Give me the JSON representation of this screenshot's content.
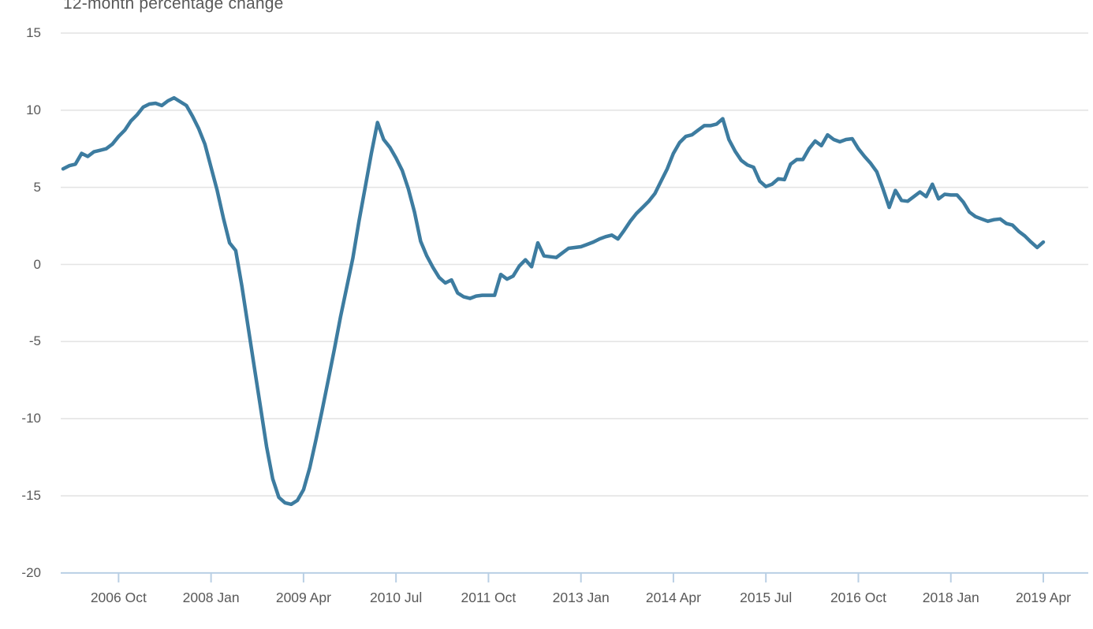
{
  "chart_data": {
    "type": "line",
    "title": "12-month percentage change",
    "xlabel": "",
    "ylabel": "",
    "x_start": "2006 Jan",
    "x_end": "2019 Apr",
    "frequency": "monthly",
    "x_tick_labels": [
      "2006 Oct",
      "2008 Jan",
      "2009 Apr",
      "2010 Jul",
      "2011 Oct",
      "2013 Jan",
      "2014 Apr",
      "2015 Jul",
      "2016 Oct",
      "2018 Jan",
      "2019 Apr"
    ],
    "x_tick_month_indices": [
      9,
      24,
      39,
      54,
      69,
      84,
      99,
      114,
      129,
      144,
      159
    ],
    "y_ticks": [
      15,
      10,
      5,
      0,
      -5,
      -10,
      -15,
      -20
    ],
    "ylim": [
      -20,
      15
    ],
    "grid": "horizontal",
    "legend": "none",
    "line_color": "#3d7ca0",
    "gridline_color": "#e4e4e4",
    "axis_color": "#b9cfe4",
    "text_color": "#595959",
    "series": [
      {
        "name": "12-month percentage change",
        "values": [
          6.2,
          6.4,
          6.5,
          7.2,
          7.0,
          7.3,
          7.4,
          7.5,
          7.8,
          8.3,
          8.7,
          9.3,
          9.7,
          10.2,
          10.4,
          10.45,
          10.3,
          10.6,
          10.8,
          10.55,
          10.3,
          9.6,
          8.8,
          7.8,
          6.3,
          4.8,
          3.0,
          1.4,
          0.9,
          -1.4,
          -4.0,
          -6.6,
          -9.2,
          -11.8,
          -13.9,
          -15.1,
          -15.45,
          -15.55,
          -15.3,
          -14.6,
          -13.2,
          -11.4,
          -9.5,
          -7.5,
          -5.5,
          -3.4,
          -1.5,
          0.4,
          2.8,
          5.0,
          7.2,
          9.2,
          8.1,
          7.6,
          6.9,
          6.1,
          4.9,
          3.4,
          1.5,
          0.55,
          -0.2,
          -0.85,
          -1.2,
          -1.0,
          -1.85,
          -2.1,
          -2.2,
          -2.05,
          -2.0,
          -2.0,
          -2.0,
          -0.65,
          -0.95,
          -0.75,
          -0.1,
          0.3,
          -0.15,
          1.4,
          0.55,
          0.5,
          0.45,
          0.75,
          1.05,
          1.1,
          1.15,
          1.3,
          1.45,
          1.65,
          1.8,
          1.9,
          1.65,
          2.2,
          2.8,
          3.3,
          3.7,
          4.1,
          4.6,
          5.4,
          6.2,
          7.2,
          7.9,
          8.3,
          8.4,
          8.7,
          9.0,
          9.0,
          9.1,
          9.45,
          8.1,
          7.35,
          6.75,
          6.45,
          6.3,
          5.4,
          5.05,
          5.2,
          5.55,
          5.5,
          6.5,
          6.8,
          6.8,
          7.5,
          8.0,
          7.7,
          8.4,
          8.1,
          7.95,
          8.1,
          8.15,
          7.5,
          7.0,
          6.55,
          6.0,
          4.9,
          3.7,
          4.8,
          4.15,
          4.1,
          4.4,
          4.7,
          4.4,
          5.2,
          4.25,
          4.55,
          4.5,
          4.5,
          4.05,
          3.4,
          3.1,
          2.95,
          2.8,
          2.9,
          2.95,
          2.65,
          2.55,
          2.15,
          1.85,
          1.45,
          1.1,
          1.45
        ]
      }
    ]
  }
}
